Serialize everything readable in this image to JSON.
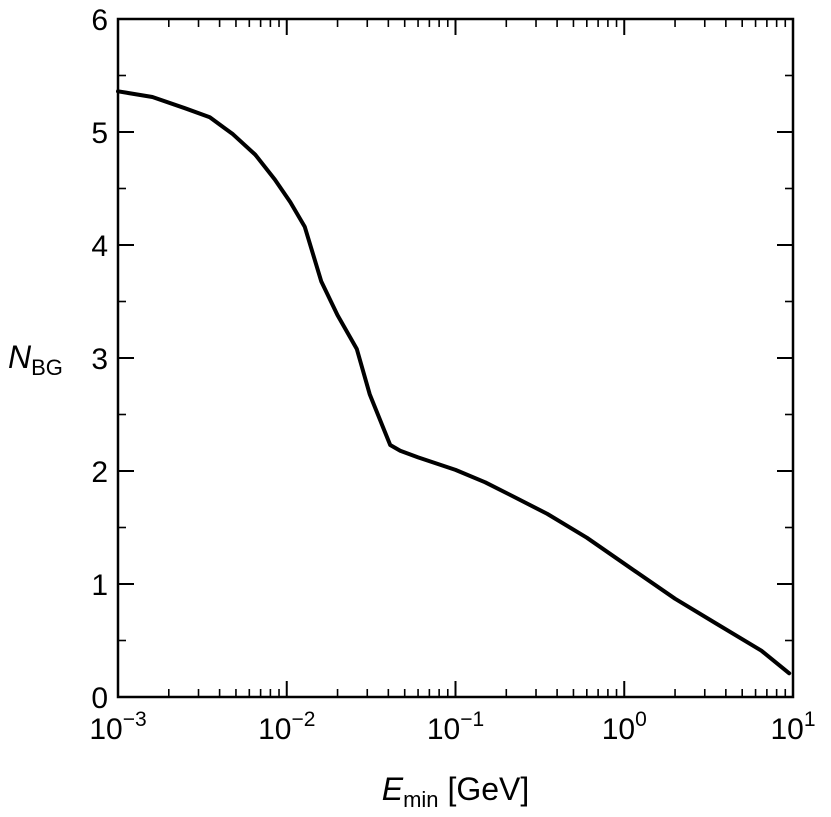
{
  "chart_data": {
    "type": "line",
    "x_scale": "log",
    "y_scale": "linear",
    "xlim": [
      0.001,
      10
    ],
    "ylim": [
      0,
      6
    ],
    "grid": false,
    "legend": "none",
    "xlabel": {
      "main": "E",
      "sub": "min",
      "suffix": " [GeV]"
    },
    "ylabel": {
      "main": "N",
      "sub": "BG"
    },
    "x_ticks": [
      {
        "value": 0.001,
        "base": "10",
        "exp": "−3"
      },
      {
        "value": 0.01,
        "base": "10",
        "exp": "−2"
      },
      {
        "value": 0.1,
        "base": "10",
        "exp": "−1"
      },
      {
        "value": 1,
        "base": "10",
        "exp": "0"
      },
      {
        "value": 10,
        "base": "10",
        "exp": "1"
      }
    ],
    "y_ticks": [
      {
        "value": 0,
        "label": "0"
      },
      {
        "value": 1,
        "label": "1"
      },
      {
        "value": 2,
        "label": "2"
      },
      {
        "value": 3,
        "label": "3"
      },
      {
        "value": 4,
        "label": "4"
      },
      {
        "value": 5,
        "label": "5"
      },
      {
        "value": 6,
        "label": "6"
      }
    ],
    "series": [
      {
        "color": "#000000",
        "x": [
          0.001,
          0.0016,
          0.0025,
          0.0035,
          0.0048,
          0.0065,
          0.0085,
          0.0105,
          0.0128,
          0.016,
          0.02,
          0.026,
          0.031,
          0.036,
          0.041,
          0.047,
          0.06,
          0.1,
          0.15,
          0.23,
          0.35,
          0.6,
          1.0,
          2.0,
          3.5,
          6.5,
          9.5
        ],
        "y": [
          5.36,
          5.31,
          5.21,
          5.13,
          4.98,
          4.8,
          4.58,
          4.38,
          4.16,
          3.68,
          3.38,
          3.08,
          2.68,
          2.44,
          2.23,
          2.18,
          2.12,
          2.01,
          1.9,
          1.76,
          1.62,
          1.41,
          1.18,
          0.87,
          0.65,
          0.41,
          0.21
        ]
      }
    ]
  }
}
